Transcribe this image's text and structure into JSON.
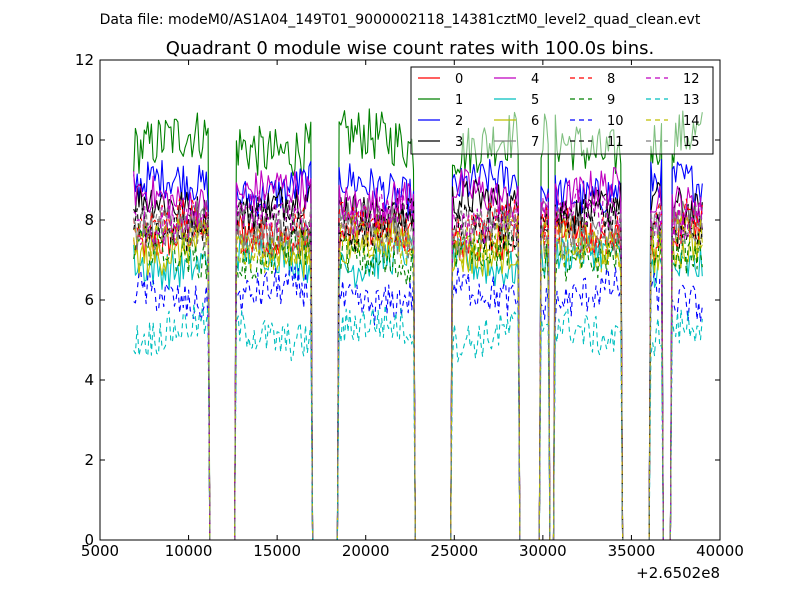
{
  "figure": {
    "suptitle": "Data file: modeM0/AS1A04_149T01_9000002118_14381cztM0_level2_quad_clean.evt",
    "offset_label": "+2.6502e8"
  },
  "chart_data": {
    "type": "line",
    "title": "Quadrant 0 module wise count rates with 100.0s bins.",
    "xlabel": "",
    "ylabel": "",
    "xlim": [
      5000,
      40000
    ],
    "ylim": [
      0,
      12
    ],
    "x_offset": 265020000,
    "grid": false,
    "legend_placement": "top-right",
    "legend_columns": 4,
    "x_ticks": [
      5000,
      10000,
      15000,
      20000,
      25000,
      30000,
      35000,
      40000
    ],
    "x_tick_labels": [
      "5000",
      "10000",
      "15000",
      "20000",
      "25000",
      "30000",
      "35000",
      "40000"
    ],
    "y_ticks": [
      0,
      2,
      4,
      6,
      8,
      10,
      12
    ],
    "y_tick_labels": [
      "0",
      "2",
      "4",
      "6",
      "8",
      "10",
      "12"
    ],
    "observation_windows": [
      {
        "start": 6900,
        "end": 11100
      },
      {
        "start": 12700,
        "end": 16900
      },
      {
        "start": 18500,
        "end": 22700
      },
      {
        "start": 24900,
        "end": 28600
      },
      {
        "start": 29900,
        "end": 30300
      },
      {
        "start": 30700,
        "end": 34400
      },
      {
        "start": 36100,
        "end": 36700
      },
      {
        "start": 37300,
        "end": 39000
      }
    ],
    "series": [
      {
        "name": "0",
        "color": "#ff0000",
        "dash": "solid",
        "level": 7.6
      },
      {
        "name": "1",
        "color": "#008000",
        "dash": "solid",
        "level": 9.9
      },
      {
        "name": "2",
        "color": "#0000ff",
        "dash": "solid",
        "level": 8.8
      },
      {
        "name": "3",
        "color": "#000000",
        "dash": "solid",
        "level": 8.3
      },
      {
        "name": "4",
        "color": "#bf00bf",
        "dash": "solid",
        "level": 8.6
      },
      {
        "name": "5",
        "color": "#00bfbf",
        "dash": "solid",
        "level": 7.0
      },
      {
        "name": "6",
        "color": "#bfbf00",
        "dash": "solid",
        "level": 7.3
      },
      {
        "name": "7",
        "color": "#808080",
        "dash": "solid",
        "level": 7.8
      },
      {
        "name": "8",
        "color": "#ff0000",
        "dash": "dashed",
        "level": 7.8
      },
      {
        "name": "9",
        "color": "#008000",
        "dash": "dashed",
        "level": 7.1
      },
      {
        "name": "10",
        "color": "#0000ff",
        "dash": "dashed",
        "level": 6.1
      },
      {
        "name": "11",
        "color": "#000000",
        "dash": "dashed",
        "level": 7.9
      },
      {
        "name": "12",
        "color": "#bf00bf",
        "dash": "dashed",
        "level": 8.1
      },
      {
        "name": "13",
        "color": "#00bfbf",
        "dash": "dashed",
        "level": 5.2
      },
      {
        "name": "14",
        "color": "#bfbf00",
        "dash": "dashed",
        "level": 7.4
      },
      {
        "name": "15",
        "color": "#808080",
        "dash": "dashed",
        "level": 7.7
      }
    ]
  }
}
